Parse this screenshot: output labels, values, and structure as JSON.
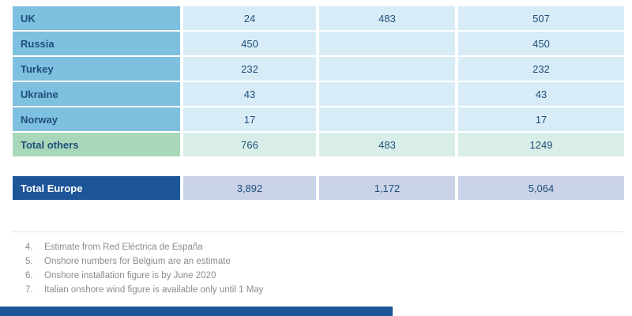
{
  "table": {
    "rows": [
      {
        "label": "UK",
        "values": [
          "24",
          "483",
          "507"
        ]
      },
      {
        "label": "Russia",
        "values": [
          "450",
          "",
          "450"
        ]
      },
      {
        "label": "Turkey",
        "values": [
          "232",
          "",
          "232"
        ]
      },
      {
        "label": "Ukraine",
        "values": [
          "43",
          "",
          "43"
        ]
      },
      {
        "label": "Norway",
        "values": [
          "17",
          "",
          "17"
        ]
      },
      {
        "label": "Total others",
        "values": [
          "766",
          "483",
          "1249"
        ]
      }
    ],
    "total_row": {
      "label": "Total Europe",
      "values": [
        "3,892",
        "1,172",
        "5,064"
      ]
    }
  },
  "footnotes": [
    {
      "num": "4.",
      "text": "Estimate from Red Eléctrica de España"
    },
    {
      "num": "5.",
      "text": "Onshore numbers for Belgium are an estimate"
    },
    {
      "num": "6.",
      "text": "Onshore installation figure is by June 2020"
    },
    {
      "num": "7.",
      "text": "Italian onshore wind figure is available only until 1 May"
    }
  ],
  "colors": {
    "label_cell": "#7EC0DF",
    "value_cell": "#D8ECF7",
    "subtotal_label_cell": "#A8D8B9",
    "subtotal_value_cell": "#D9EEE8",
    "total_label_cell": "#1C5598",
    "total_value_cell": "#CBD3E8",
    "text_navy": "#1F4E79",
    "footnote_gray": "#8C8C8C",
    "bottom_bar": "#1C5598"
  }
}
